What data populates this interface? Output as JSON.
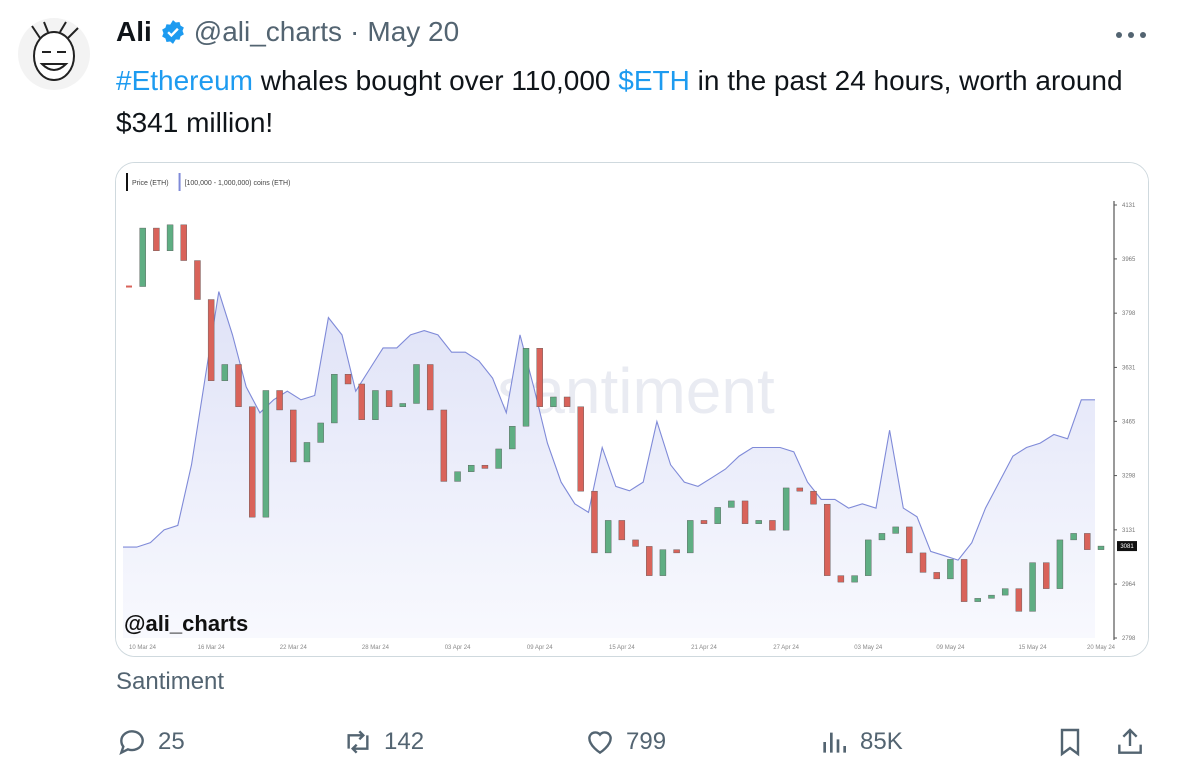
{
  "post": {
    "name": "Ali",
    "handle": "@ali_charts",
    "separator": "·",
    "date": "May 20",
    "text": [
      "#Ethereum",
      " whales bought over 110,000 ",
      "$ETH",
      " in the past 24 hours, worth around $341 million!"
    ],
    "source": "Santiment",
    "stats": {
      "replies": "25",
      "reposts": "142",
      "likes": "799",
      "views": "85K"
    }
  },
  "chart_data": {
    "type": "candlestick",
    "watermark": "santiment",
    "annotation": "@ali_charts",
    "up_color": "#5fae83",
    "down_color": "#d9635a",
    "categories": [
      "10 Mar 24",
      null,
      null,
      null,
      null,
      null,
      "16 Mar 24",
      null,
      null,
      null,
      null,
      null,
      "22 Mar 24",
      null,
      null,
      null,
      null,
      null,
      "28 Mar 24",
      null,
      null,
      null,
      null,
      null,
      "03 Apr 24",
      null,
      null,
      null,
      null,
      null,
      "09 Apr 24",
      null,
      null,
      null,
      null,
      null,
      "15 Apr 24",
      null,
      null,
      null,
      null,
      null,
      "21 Apr 24",
      null,
      null,
      null,
      null,
      null,
      "27 Apr 24",
      null,
      null,
      null,
      null,
      null,
      "03 May 24",
      null,
      null,
      null,
      null,
      null,
      "09 May 24",
      null,
      null,
      null,
      null,
      null,
      "15 May 24",
      null,
      null,
      null,
      null,
      "20 May 24"
    ],
    "series": [
      {
        "name": "Price (ETH)",
        "color": "#111111",
        "values": [
          3880,
          4060,
          3990,
          4070,
          3960,
          3840,
          3590,
          3640,
          3510,
          3170,
          3560,
          3500,
          3340,
          3400,
          3460,
          3610,
          3580,
          3470,
          3560,
          3510,
          3520,
          3640,
          3500,
          3280,
          3310,
          3330,
          3320,
          3380,
          3450,
          3690,
          3510,
          3540,
          3510,
          3250,
          3060,
          3160,
          3100,
          3080,
          2990,
          3070,
          3060,
          3160,
          3150,
          3200,
          3220,
          3150,
          3160,
          3130,
          3260,
          3250,
          3210,
          2990,
          2970,
          2990,
          3100,
          3120,
          3140,
          3060,
          3000,
          2980,
          3040,
          2910,
          2920,
          2930,
          2950,
          2880,
          3030,
          2950,
          3100,
          3120,
          3070,
          3081
        ]
      },
      {
        "name": "[100,000 - 1,000,000) coins (ETH)",
        "color": "#7f8ad8",
        "axis": "y2",
        "values": [
          21,
          21,
          22,
          25,
          26,
          40,
          60,
          80,
          70,
          58,
          52,
          55,
          57,
          55,
          56,
          74,
          70,
          57,
          62,
          67,
          67,
          70,
          71,
          70,
          66,
          66,
          64,
          60,
          52,
          70,
          58,
          45,
          36,
          31,
          29,
          44,
          35,
          34,
          36,
          50,
          40,
          36,
          35,
          37,
          39,
          42,
          44,
          44,
          44,
          43,
          36,
          32,
          32,
          30,
          31,
          30,
          48,
          30,
          28,
          20,
          19,
          18,
          22,
          30,
          36,
          42,
          44,
          45,
          47,
          46,
          55,
          55
        ]
      }
    ],
    "ylim": [
      2798,
      4131
    ],
    "yticks": [
      4131,
      3965,
      3798,
      3631,
      3465,
      3298,
      3131,
      2964,
      2798
    ],
    "y2lim": [
      0,
      100
    ],
    "grid": false
  }
}
